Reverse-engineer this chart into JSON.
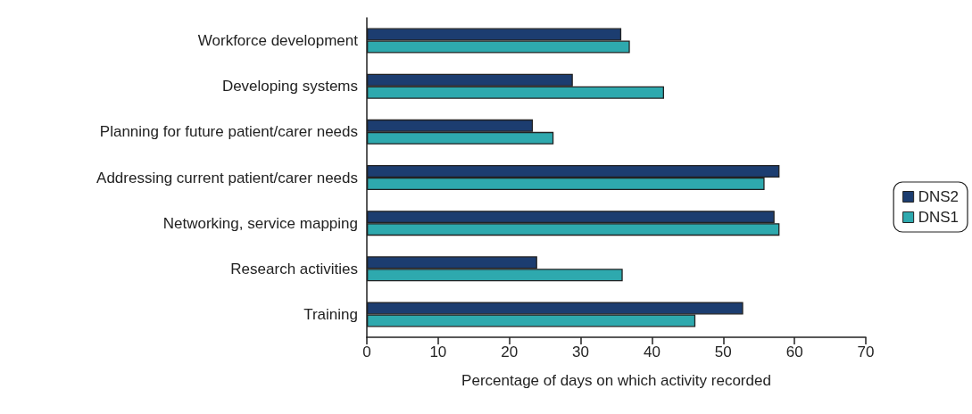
{
  "chart_data": {
    "type": "bar",
    "orientation": "horizontal",
    "xlabel": "Percentage of days on which activity recorded",
    "categories": [
      "Workforce development",
      "Developing systems",
      "Planning for future patient/carer needs",
      "Addressing current patient/carer needs",
      "Networking, service mapping",
      "Research activities",
      "Training"
    ],
    "series": [
      {
        "name": "DNS2",
        "color": "#1c3d70",
        "values": [
          35.7,
          28.9,
          23.3,
          57.9,
          57.2,
          23.9,
          52.8
        ]
      },
      {
        "name": "DNS1",
        "color": "#2ea9ae",
        "values": [
          36.9,
          41.7,
          26.2,
          55.8,
          57.9,
          35.9,
          46.1
        ]
      }
    ],
    "xlim": [
      0,
      70
    ],
    "xticks": [
      0,
      10,
      20,
      30,
      40,
      50,
      60,
      70
    ],
    "grid": false,
    "legend": "right"
  }
}
